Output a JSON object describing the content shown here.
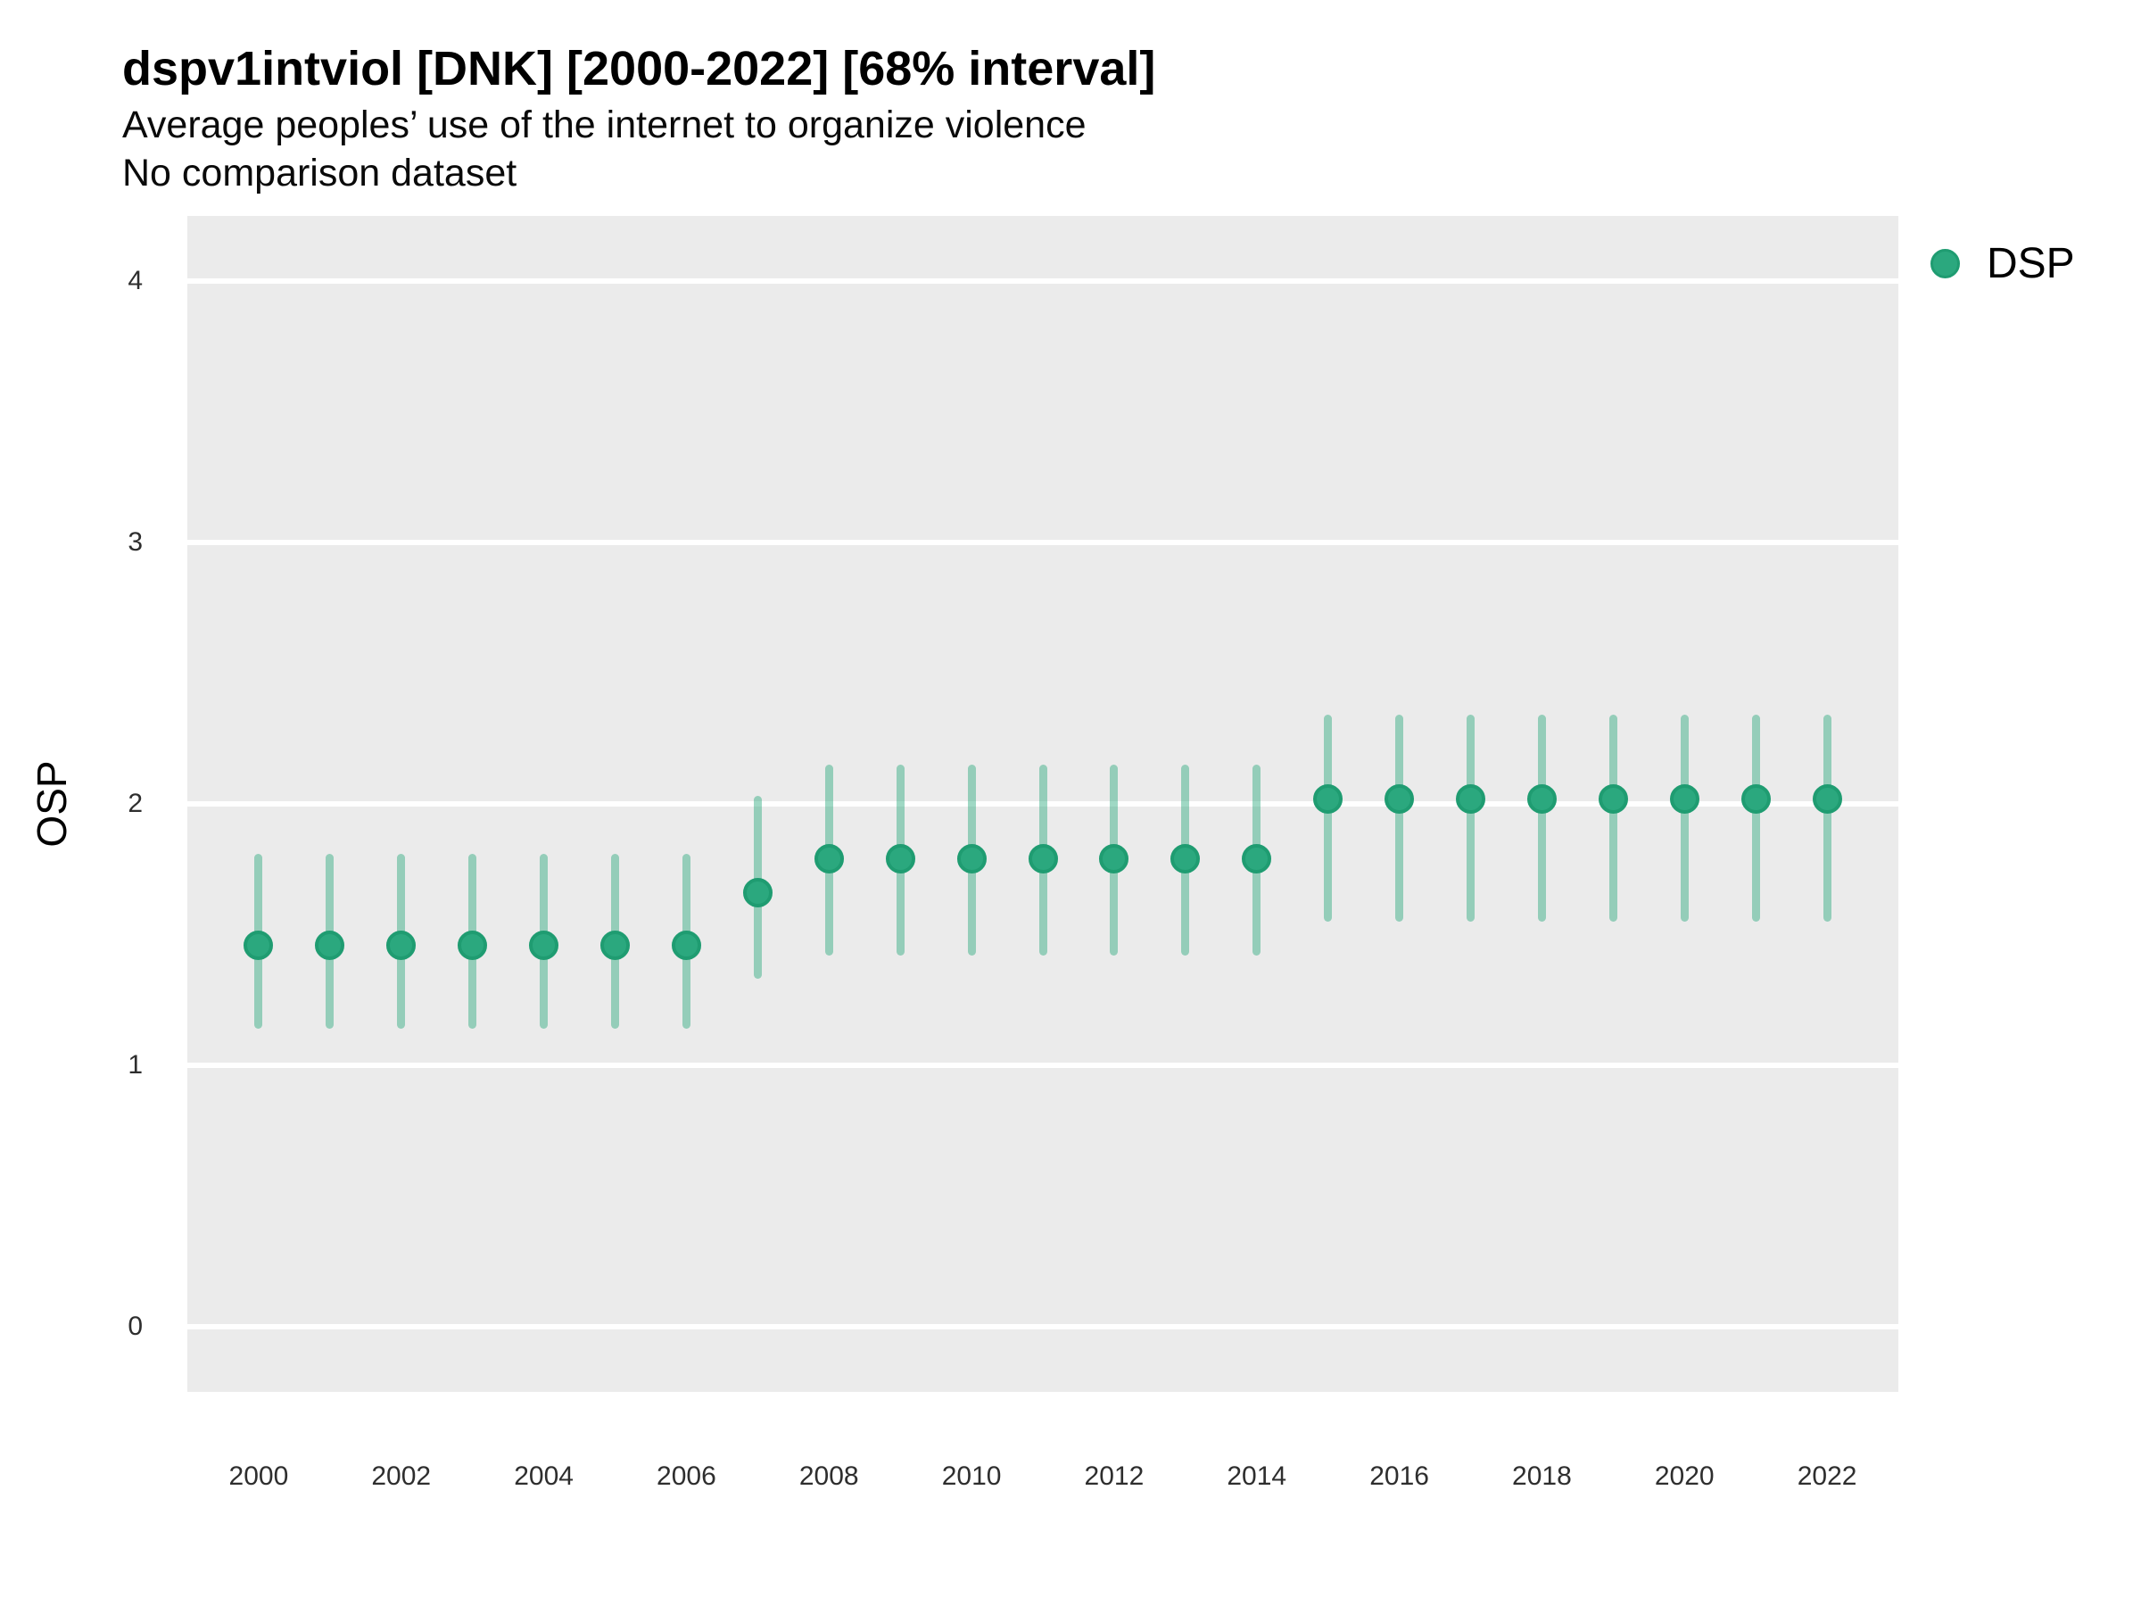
{
  "header": {
    "title": "dspv1intviol [DNK] [2000-2022] [68% interval]",
    "subtitle": "Average peoples’ use of the internet to organize violence",
    "note": "No comparison dataset"
  },
  "axes": {
    "y_title": "OSP"
  },
  "legend": {
    "position": "right",
    "items": [
      {
        "label": "DSP",
        "color": "#2ba87e",
        "stroke": "#1f9c71"
      }
    ]
  },
  "colors": {
    "panel_background": "#ebebeb",
    "gridline": "#ffffff",
    "point_fill": "#2ba87e",
    "point_stroke": "#1f9c71",
    "interval_line": "rgba(42, 168, 124, 0.45)"
  },
  "chart_data": {
    "type": "pointrange",
    "title": "dspv1intviol [DNK] [2000-2022] [68% interval]",
    "subtitle": "Average peoples’ use of the internet to organize violence",
    "note": "No comparison dataset",
    "interval": "68%",
    "xlabel": "",
    "ylabel": "OSP",
    "x": [
      2000,
      2001,
      2002,
      2003,
      2004,
      2005,
      2006,
      2007,
      2008,
      2009,
      2010,
      2011,
      2012,
      2013,
      2014,
      2015,
      2016,
      2017,
      2018,
      2019,
      2020,
      2021,
      2022
    ],
    "series": [
      {
        "name": "DSP",
        "estimate": [
          1.46,
          1.46,
          1.46,
          1.46,
          1.46,
          1.46,
          1.46,
          1.66,
          1.79,
          1.79,
          1.79,
          1.79,
          1.79,
          1.79,
          1.79,
          2.02,
          2.02,
          2.02,
          2.02,
          2.02,
          2.02,
          2.02,
          2.02
        ],
        "lower": [
          1.14,
          1.14,
          1.14,
          1.14,
          1.14,
          1.14,
          1.14,
          1.33,
          1.42,
          1.42,
          1.42,
          1.42,
          1.42,
          1.42,
          1.42,
          1.55,
          1.55,
          1.55,
          1.55,
          1.55,
          1.55,
          1.55,
          1.55
        ],
        "upper": [
          1.81,
          1.81,
          1.81,
          1.81,
          1.81,
          1.81,
          1.81,
          2.03,
          2.15,
          2.15,
          2.15,
          2.15,
          2.15,
          2.15,
          2.15,
          2.34,
          2.34,
          2.34,
          2.34,
          2.34,
          2.34,
          2.34,
          2.34
        ]
      }
    ],
    "xticks": [
      2000,
      2002,
      2004,
      2006,
      2008,
      2010,
      2012,
      2014,
      2016,
      2018,
      2020,
      2022
    ],
    "yticks": [
      0,
      1,
      2,
      3,
      4
    ],
    "xlim": [
      1999,
      2023
    ],
    "ylim": [
      -0.25,
      4.25
    ],
    "grid": "major-horizontal",
    "legend_position": "right"
  }
}
